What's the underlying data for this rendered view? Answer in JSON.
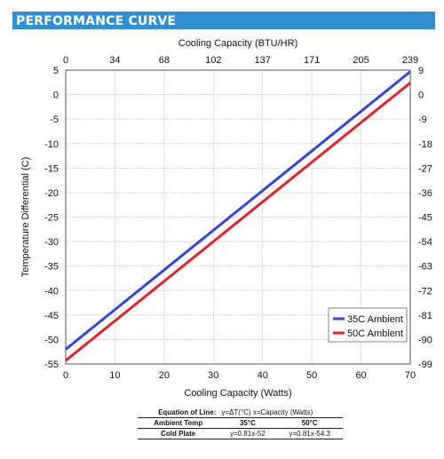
{
  "header": {
    "title": "PERFORMANCE CURVE"
  },
  "chart_data": {
    "type": "line",
    "title": "",
    "xlabel": "Cooling Capacity (Watts)",
    "x2label": "Cooling Capacity (BTU/HR)",
    "ylabel": "Temperature Differential (C)",
    "xlim": [
      0,
      70
    ],
    "ylim": [
      -55,
      5
    ],
    "x_ticks": [
      0,
      10,
      20,
      30,
      40,
      50,
      60,
      70
    ],
    "y_ticks": [
      5,
      0,
      -5,
      -10,
      -15,
      -20,
      -25,
      -30,
      -35,
      -40,
      -45,
      -50,
      -55
    ],
    "x2_ticks": [
      "0",
      "34",
      "68",
      "102",
      "137",
      "171",
      "205",
      "239"
    ],
    "y2_ticks": [
      "9",
      "0",
      "-9",
      "-18",
      "-27",
      "-36",
      "-45",
      "-54",
      "-63",
      "-72",
      "-81",
      "-90",
      "-99"
    ],
    "grid": true,
    "legend_position": "bottom-right",
    "series": [
      {
        "name": "35C Ambient",
        "color": "#3344e0",
        "x": [
          0,
          70
        ],
        "y": [
          -52,
          4.7
        ]
      },
      {
        "name": "50C Ambient",
        "color": "#e8202a",
        "x": [
          0,
          70
        ],
        "y": [
          -54.3,
          2.4
        ]
      }
    ]
  },
  "equation_table": {
    "label": "Equation of Line:",
    "formula": "y=ΔT(°C)  x=Capacity (Watts)",
    "header": [
      "Ambient Temp",
      "35°C",
      "50°C"
    ],
    "row": [
      "Cold Plate",
      "y=0.81x-52",
      "y=0.81x-54.3"
    ]
  }
}
